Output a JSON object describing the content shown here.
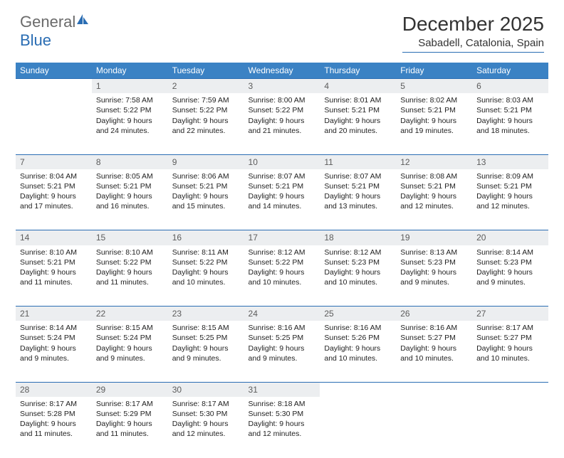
{
  "logo": {
    "text1": "General",
    "text2": "Blue"
  },
  "title": "December 2025",
  "location": "Sabadell, Catalonia, Spain",
  "colors": {
    "header_bg": "#3b82c4",
    "header_fg": "#ffffff",
    "daynum_bg": "#eceef0",
    "daynum_fg": "#5c5c5c",
    "rule": "#2a6db3",
    "logo_blue": "#2a6db3",
    "body_text": "#222222"
  },
  "weekdays": [
    "Sunday",
    "Monday",
    "Tuesday",
    "Wednesday",
    "Thursday",
    "Friday",
    "Saturday"
  ],
  "weeks": [
    [
      null,
      {
        "n": "1",
        "sr": "7:58 AM",
        "ss": "5:22 PM",
        "dl": "9 hours and 24 minutes."
      },
      {
        "n": "2",
        "sr": "7:59 AM",
        "ss": "5:22 PM",
        "dl": "9 hours and 22 minutes."
      },
      {
        "n": "3",
        "sr": "8:00 AM",
        "ss": "5:22 PM",
        "dl": "9 hours and 21 minutes."
      },
      {
        "n": "4",
        "sr": "8:01 AM",
        "ss": "5:21 PM",
        "dl": "9 hours and 20 minutes."
      },
      {
        "n": "5",
        "sr": "8:02 AM",
        "ss": "5:21 PM",
        "dl": "9 hours and 19 minutes."
      },
      {
        "n": "6",
        "sr": "8:03 AM",
        "ss": "5:21 PM",
        "dl": "9 hours and 18 minutes."
      }
    ],
    [
      {
        "n": "7",
        "sr": "8:04 AM",
        "ss": "5:21 PM",
        "dl": "9 hours and 17 minutes."
      },
      {
        "n": "8",
        "sr": "8:05 AM",
        "ss": "5:21 PM",
        "dl": "9 hours and 16 minutes."
      },
      {
        "n": "9",
        "sr": "8:06 AM",
        "ss": "5:21 PM",
        "dl": "9 hours and 15 minutes."
      },
      {
        "n": "10",
        "sr": "8:07 AM",
        "ss": "5:21 PM",
        "dl": "9 hours and 14 minutes."
      },
      {
        "n": "11",
        "sr": "8:07 AM",
        "ss": "5:21 PM",
        "dl": "9 hours and 13 minutes."
      },
      {
        "n": "12",
        "sr": "8:08 AM",
        "ss": "5:21 PM",
        "dl": "9 hours and 12 minutes."
      },
      {
        "n": "13",
        "sr": "8:09 AM",
        "ss": "5:21 PM",
        "dl": "9 hours and 12 minutes."
      }
    ],
    [
      {
        "n": "14",
        "sr": "8:10 AM",
        "ss": "5:21 PM",
        "dl": "9 hours and 11 minutes."
      },
      {
        "n": "15",
        "sr": "8:10 AM",
        "ss": "5:22 PM",
        "dl": "9 hours and 11 minutes."
      },
      {
        "n": "16",
        "sr": "8:11 AM",
        "ss": "5:22 PM",
        "dl": "9 hours and 10 minutes."
      },
      {
        "n": "17",
        "sr": "8:12 AM",
        "ss": "5:22 PM",
        "dl": "9 hours and 10 minutes."
      },
      {
        "n": "18",
        "sr": "8:12 AM",
        "ss": "5:23 PM",
        "dl": "9 hours and 10 minutes."
      },
      {
        "n": "19",
        "sr": "8:13 AM",
        "ss": "5:23 PM",
        "dl": "9 hours and 9 minutes."
      },
      {
        "n": "20",
        "sr": "8:14 AM",
        "ss": "5:23 PM",
        "dl": "9 hours and 9 minutes."
      }
    ],
    [
      {
        "n": "21",
        "sr": "8:14 AM",
        "ss": "5:24 PM",
        "dl": "9 hours and 9 minutes."
      },
      {
        "n": "22",
        "sr": "8:15 AM",
        "ss": "5:24 PM",
        "dl": "9 hours and 9 minutes."
      },
      {
        "n": "23",
        "sr": "8:15 AM",
        "ss": "5:25 PM",
        "dl": "9 hours and 9 minutes."
      },
      {
        "n": "24",
        "sr": "8:16 AM",
        "ss": "5:25 PM",
        "dl": "9 hours and 9 minutes."
      },
      {
        "n": "25",
        "sr": "8:16 AM",
        "ss": "5:26 PM",
        "dl": "9 hours and 10 minutes."
      },
      {
        "n": "26",
        "sr": "8:16 AM",
        "ss": "5:27 PM",
        "dl": "9 hours and 10 minutes."
      },
      {
        "n": "27",
        "sr": "8:17 AM",
        "ss": "5:27 PM",
        "dl": "9 hours and 10 minutes."
      }
    ],
    [
      {
        "n": "28",
        "sr": "8:17 AM",
        "ss": "5:28 PM",
        "dl": "9 hours and 11 minutes."
      },
      {
        "n": "29",
        "sr": "8:17 AM",
        "ss": "5:29 PM",
        "dl": "9 hours and 11 minutes."
      },
      {
        "n": "30",
        "sr": "8:17 AM",
        "ss": "5:30 PM",
        "dl": "9 hours and 12 minutes."
      },
      {
        "n": "31",
        "sr": "8:18 AM",
        "ss": "5:30 PM",
        "dl": "9 hours and 12 minutes."
      },
      null,
      null,
      null
    ]
  ],
  "labels": {
    "sunrise": "Sunrise:",
    "sunset": "Sunset:",
    "daylight": "Daylight:"
  }
}
